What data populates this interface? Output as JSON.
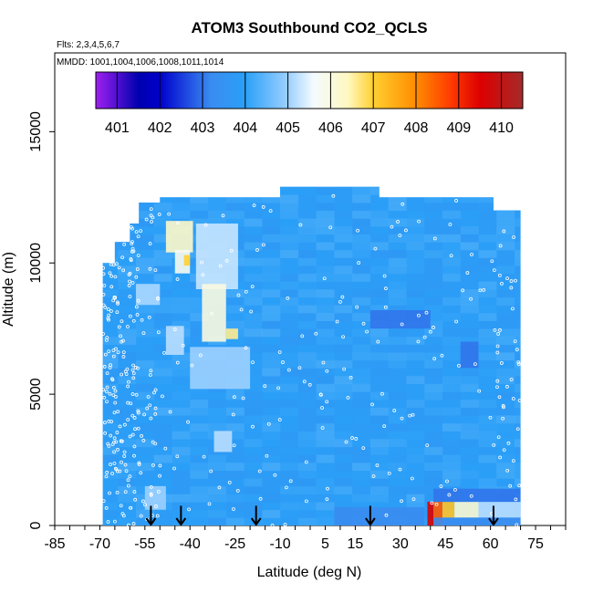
{
  "chart_data": {
    "type": "heatmap",
    "title": "ATOM3 Southbound CO2_QCLS",
    "flights_label": "Flts: 2,3,4,5,6,7",
    "dates_label": "MMDD: 1001,1004,1006,1008,1011,1014",
    "xlabel": "Latitude (deg N)",
    "ylabel": "Altitude (m)",
    "xlim": [
      -85,
      85
    ],
    "ylim": [
      0,
      18000
    ],
    "x_ticks": [
      -85,
      -70,
      -55,
      -40,
      -25,
      -10,
      5,
      15,
      30,
      45,
      60,
      75
    ],
    "y_ticks": [
      0,
      5000,
      10000,
      15000
    ],
    "colorbar": {
      "ticks": [
        401,
        402,
        403,
        404,
        405,
        406,
        407,
        408,
        409,
        410
      ],
      "range": [
        400.5,
        410.5
      ],
      "stops": [
        {
          "value": 400.5,
          "color": "#a020f0"
        },
        {
          "value": 401.0,
          "color": "#5010d0"
        },
        {
          "value": 401.5,
          "color": "#0000b0"
        },
        {
          "value": 402.0,
          "color": "#0000cc"
        },
        {
          "value": 402.6,
          "color": "#1e46e0"
        },
        {
          "value": 403.2,
          "color": "#3a8cf0"
        },
        {
          "value": 404.0,
          "color": "#2aa0f8"
        },
        {
          "value": 405.0,
          "color": "#9cd0ff"
        },
        {
          "value": 405.6,
          "color": "#f4fbff"
        },
        {
          "value": 406.4,
          "color": "#fff8c0"
        },
        {
          "value": 407.0,
          "color": "#ffd030"
        },
        {
          "value": 408.0,
          "color": "#ff8c00"
        },
        {
          "value": 408.8,
          "color": "#ff3c00"
        },
        {
          "value": 409.5,
          "color": "#dd0000"
        },
        {
          "value": 410.5,
          "color": "#a52a2a"
        }
      ]
    },
    "lat_columns": [
      {
        "lat_min": -69,
        "lat_max": -65,
        "alt_max": 10000
      },
      {
        "lat_min": -65,
        "lat_max": -60,
        "alt_max": 10800
      },
      {
        "lat_min": -60,
        "lat_max": -57,
        "alt_max": 11500
      },
      {
        "lat_min": -57,
        "lat_max": -50,
        "alt_max": 12300
      },
      {
        "lat_min": -50,
        "lat_max": -10,
        "alt_max": 12500
      },
      {
        "lat_min": -10,
        "lat_max": 23,
        "alt_max": 12900
      },
      {
        "lat_min": 23,
        "lat_max": 61,
        "alt_max": 12500
      },
      {
        "lat_min": 61,
        "lat_max": 70,
        "alt_max": 12000
      }
    ],
    "background_value": 403.9,
    "anomalies": [
      {
        "lat_min": -48,
        "lat_max": -39,
        "alt_min": 10400,
        "alt_max": 11600,
        "value": 406.3
      },
      {
        "lat_min": -45,
        "lat_max": -40,
        "alt_min": 9600,
        "alt_max": 10500,
        "value": 405.8
      },
      {
        "lat_min": -42,
        "lat_max": -40,
        "alt_min": 9900,
        "alt_max": 10300,
        "value": 407.0
      },
      {
        "lat_min": -38,
        "lat_max": -24,
        "alt_min": 9000,
        "alt_max": 11500,
        "value": 405.3
      },
      {
        "lat_min": -36,
        "lat_max": -28,
        "alt_min": 7000,
        "alt_max": 9200,
        "value": 406.0
      },
      {
        "lat_min": -28,
        "lat_max": -24,
        "alt_min": 7100,
        "alt_max": 7500,
        "value": 406.6
      },
      {
        "lat_min": -48,
        "lat_max": -42,
        "alt_min": 6500,
        "alt_max": 7600,
        "value": 405.2
      },
      {
        "lat_min": -40,
        "lat_max": -20,
        "alt_min": 5200,
        "alt_max": 6800,
        "value": 405.0
      },
      {
        "lat_min": -32,
        "lat_max": -26,
        "alt_min": 2800,
        "alt_max": 3600,
        "value": 405.2
      },
      {
        "lat_min": -58,
        "lat_max": -50,
        "alt_min": 8400,
        "alt_max": 9200,
        "value": 405.1
      },
      {
        "lat_min": -55,
        "lat_max": -48,
        "alt_min": 600,
        "alt_max": 1500,
        "value": 405.0
      },
      {
        "lat_min": 20,
        "lat_max": 40,
        "alt_min": 7500,
        "alt_max": 8200,
        "value": 403.0
      },
      {
        "lat_min": 50,
        "lat_max": 56,
        "alt_min": 6000,
        "alt_max": 7000,
        "value": 403.0
      },
      {
        "lat_min": 8,
        "lat_max": 38,
        "alt_min": 0,
        "alt_max": 700,
        "value": 403.2
      },
      {
        "lat_min": 39,
        "lat_max": 41,
        "alt_min": 0,
        "alt_max": 900,
        "value": 409.5
      },
      {
        "lat_min": 41,
        "lat_max": 44,
        "alt_min": 0,
        "alt_max": 900,
        "value": 408.5
      },
      {
        "lat_min": 44,
        "lat_max": 48,
        "alt_min": 300,
        "alt_max": 900,
        "value": 407.2
      },
      {
        "lat_min": 48,
        "lat_max": 56,
        "alt_min": 300,
        "alt_max": 900,
        "value": 406.2
      },
      {
        "lat_min": 56,
        "lat_max": 70,
        "alt_min": 300,
        "alt_max": 900,
        "value": 405.2
      },
      {
        "lat_min": 41,
        "lat_max": 70,
        "alt_min": 900,
        "alt_max": 1400,
        "value": 403.0
      },
      {
        "lat_min": 41,
        "lat_max": 70,
        "alt_min": 0,
        "alt_max": 300,
        "value": 403.2
      }
    ],
    "arrow_latitudes": [
      -53,
      -43,
      -18,
      20,
      61
    ]
  }
}
